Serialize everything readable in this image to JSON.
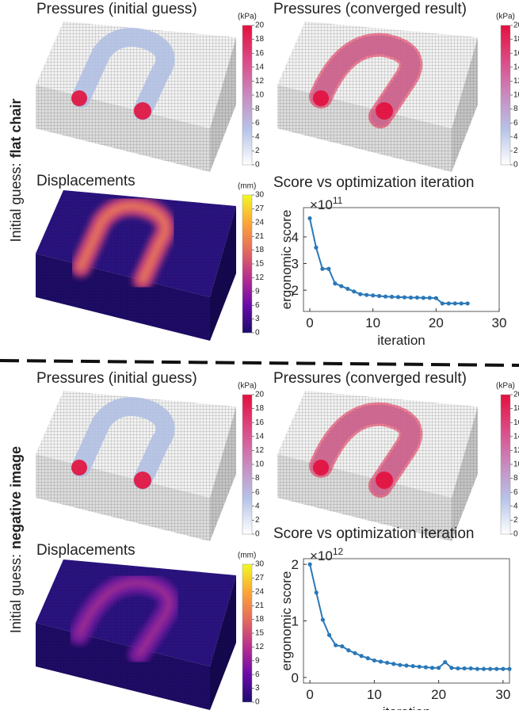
{
  "rows": [
    {
      "label_prefix": "Initial guess:",
      "label_emphasis": "flat chair",
      "titles": [
        "Pressures (initial guess)",
        "Pressures (converged result)",
        "Displacements"
      ]
    },
    {
      "label_prefix": "Initial guess:",
      "label_emphasis": "negative image",
      "titles": [
        "Pressures (initial guess)",
        "Pressures (converged result)",
        "Displacements"
      ]
    }
  ],
  "colorbars": {
    "pressure": {
      "unit": "(kPa)",
      "lim": [
        0,
        20
      ],
      "ticks": [
        0,
        2,
        4,
        6,
        8,
        10,
        12,
        14,
        16,
        18,
        20
      ],
      "colors": [
        "#ffffff",
        "#b7c4e8",
        "#c88ac0",
        "#dc4a86",
        "#e3103d"
      ]
    },
    "displacement": {
      "unit": "(mm)",
      "lim": [
        0,
        30
      ],
      "ticks": [
        0,
        3,
        6,
        9,
        12,
        15,
        18,
        21,
        24,
        27,
        30
      ],
      "colors": [
        "#1b0c6e",
        "#6a0aa8",
        "#b72f8f",
        "#e56b5d",
        "#fca636",
        "#f0f921"
      ]
    }
  },
  "chart_data": [
    {
      "type": "line",
      "title": "Score vs optimization iteration",
      "x_label": "iteration",
      "y_label": "ergonomic score",
      "y_scale_base": "×10",
      "y_scale_exponent": "11",
      "color": "#2a78b8",
      "x": [
        0,
        1,
        2,
        3,
        4,
        5,
        6,
        7,
        8,
        9,
        10,
        11,
        12,
        13,
        14,
        15,
        16,
        17,
        18,
        19,
        20,
        21,
        22,
        23,
        24,
        25
      ],
      "values": [
        4.7,
        3.6,
        2.8,
        2.8,
        2.25,
        2.15,
        2.05,
        1.95,
        1.85,
        1.82,
        1.8,
        1.78,
        1.76,
        1.75,
        1.74,
        1.73,
        1.72,
        1.72,
        1.71,
        1.71,
        1.7,
        1.5,
        1.5,
        1.5,
        1.5,
        1.5
      ],
      "xlim": [
        -1,
        30
      ],
      "ylim": [
        1.2,
        5.1
      ],
      "xticks": [
        0,
        10,
        20,
        30
      ],
      "yticks": [
        2,
        3,
        4
      ]
    },
    {
      "type": "line",
      "title": "Score vs optimization iteration",
      "x_label": "iteration",
      "y_label": "ergonomic score",
      "y_scale_base": "×10",
      "y_scale_exponent": "12",
      "color": "#2a78b8",
      "x": [
        0,
        1,
        2,
        3,
        4,
        5,
        6,
        7,
        8,
        9,
        10,
        11,
        12,
        13,
        14,
        15,
        16,
        17,
        18,
        19,
        20,
        21,
        22,
        23,
        24,
        25,
        26,
        27,
        28,
        29,
        30,
        31
      ],
      "values": [
        2.0,
        1.5,
        1.02,
        0.75,
        0.57,
        0.55,
        0.48,
        0.43,
        0.38,
        0.34,
        0.3,
        0.28,
        0.26,
        0.24,
        0.22,
        0.21,
        0.2,
        0.19,
        0.18,
        0.17,
        0.17,
        0.27,
        0.17,
        0.16,
        0.16,
        0.16,
        0.15,
        0.15,
        0.15,
        0.15,
        0.15,
        0.15
      ],
      "xlim": [
        -1,
        31
      ],
      "ylim": [
        -0.1,
        2.1
      ],
      "xticks": [
        0,
        10,
        20,
        30
      ],
      "yticks": [
        0,
        1,
        2
      ]
    }
  ]
}
